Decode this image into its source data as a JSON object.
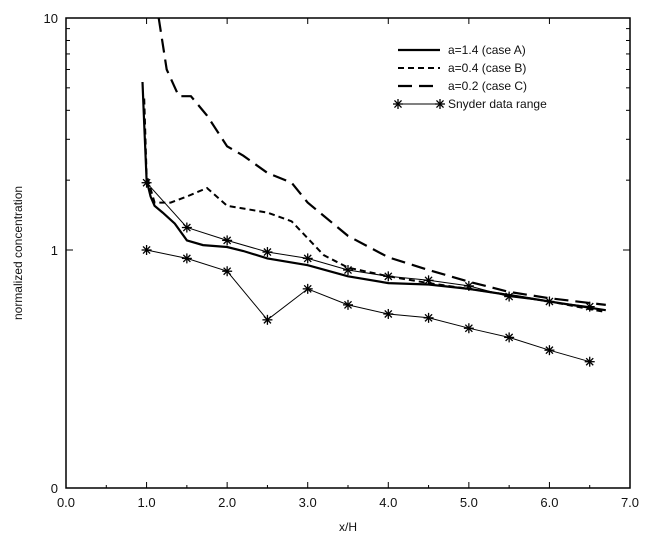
{
  "chart_data": {
    "type": "line",
    "xlabel": "x/H",
    "ylabel": "normalized concentration",
    "xlim": [
      0,
      7
    ],
    "ylim": [
      0,
      10
    ],
    "y_axis_note": "logarithmic-style axis; labeled ticks 0 (bottom), 1, 10",
    "x_ticks": [
      "0.0",
      "1.0",
      "2.0",
      "3.0",
      "4.0",
      "5.0",
      "6.0",
      "7.0"
    ],
    "y_ticks": [
      "0",
      "1",
      "10"
    ],
    "legend_position": "top-right",
    "series": [
      {
        "name": "a=1.4 (case A)",
        "style": "solid-thick",
        "x": [
          0.95,
          0.97,
          1.0,
          1.05,
          1.1,
          1.2,
          1.35,
          1.5,
          1.7,
          2.0,
          2.2,
          2.5,
          3.0,
          3.5,
          4.0,
          4.5,
          5.0,
          5.5,
          6.0,
          6.7
        ],
        "y": [
          5.3,
          3.5,
          2.0,
          1.7,
          1.55,
          1.45,
          1.3,
          1.1,
          1.05,
          1.03,
          0.99,
          0.92,
          0.86,
          0.77,
          0.72,
          0.71,
          0.68,
          0.64,
          0.6,
          0.55
        ]
      },
      {
        "name": "a=0.4 (case B)",
        "style": "short-dash",
        "x": [
          0.97,
          1.0,
          1.1,
          1.3,
          1.5,
          1.75,
          2.0,
          2.5,
          2.8,
          3.2,
          3.5,
          4.0,
          4.5,
          5.0,
          5.5,
          6.0,
          6.7
        ],
        "y": [
          4.5,
          2.1,
          1.6,
          1.6,
          1.7,
          1.85,
          1.55,
          1.45,
          1.33,
          0.95,
          0.84,
          0.77,
          0.72,
          0.68,
          0.64,
          0.6,
          0.54
        ]
      },
      {
        "name": "a=0.2 (case C)",
        "style": "long-dash",
        "x": [
          1.15,
          1.25,
          1.4,
          1.55,
          1.75,
          2.0,
          2.2,
          2.5,
          2.8,
          3.0,
          3.5,
          4.0,
          4.5,
          5.0,
          5.5,
          6.0,
          6.7
        ],
        "y": [
          10.0,
          6.0,
          4.6,
          4.6,
          3.8,
          2.8,
          2.55,
          2.15,
          1.95,
          1.6,
          1.15,
          0.93,
          0.82,
          0.73,
          0.66,
          0.62,
          0.58
        ]
      },
      {
        "name": "Snyder data range",
        "style": "thin-star",
        "marker": "asterisk",
        "x": [
          1.0,
          1.5,
          2.0,
          2.5,
          3.0,
          3.5,
          4.0,
          4.5,
          5.0,
          5.5,
          6.0,
          6.5
        ],
        "y": [
          1.95,
          1.25,
          1.1,
          0.98,
          0.92,
          0.82,
          0.77,
          0.74,
          0.7,
          0.63,
          0.6,
          0.57
        ]
      },
      {
        "name": "",
        "style": "thin-star",
        "marker": "asterisk",
        "x": [
          1.0,
          1.5,
          2.0,
          2.5,
          3.0,
          3.5,
          4.0,
          4.5,
          5.0,
          5.5,
          6.0,
          6.5
        ],
        "y": [
          1.0,
          0.92,
          0.81,
          0.5,
          0.68,
          0.58,
          0.53,
          0.51,
          0.46,
          0.42,
          0.37,
          0.33
        ]
      }
    ]
  }
}
